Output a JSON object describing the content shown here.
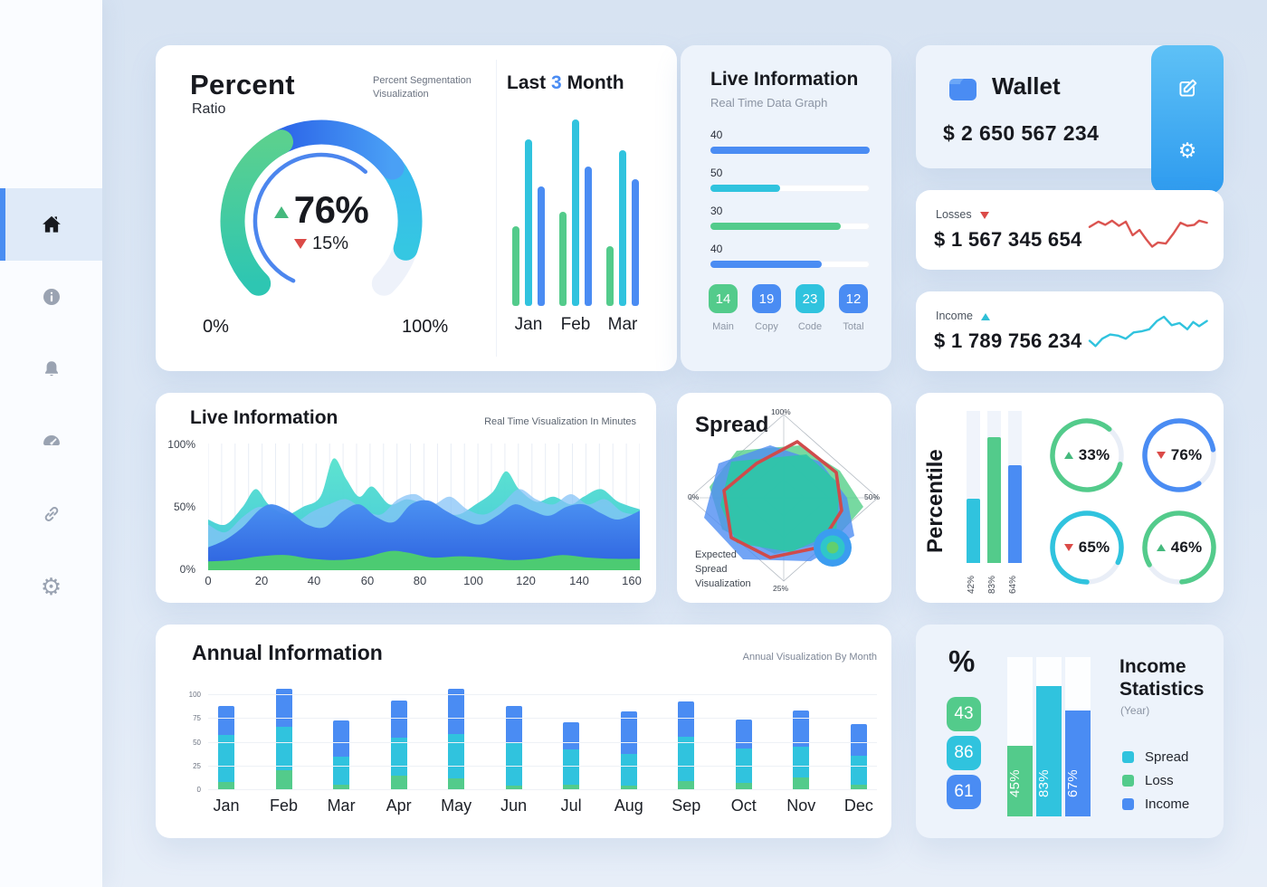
{
  "colors": {
    "green": "#53cb8b",
    "teal": "#30c3de",
    "blue": "#4a8cf3",
    "dark_blue": "#2f6ce8",
    "red": "#db5450",
    "track": "#eef2fa"
  },
  "sidebar": {
    "items": [
      {
        "id": "home",
        "icon": "home-icon",
        "active": true
      },
      {
        "id": "info",
        "icon": "info-icon",
        "active": false
      },
      {
        "id": "notifications",
        "icon": "bell-icon",
        "active": false
      },
      {
        "id": "dashboard",
        "icon": "speedometer-icon",
        "active": false
      },
      {
        "id": "links",
        "icon": "link-icon",
        "active": false
      },
      {
        "id": "settings",
        "icon": "gear-icon",
        "active": false
      }
    ]
  },
  "percent_card": {
    "title": "Percent",
    "subtitle": "Ratio",
    "caption": "Percent Segmentation Visualization",
    "value": "76%",
    "delta": "15%",
    "min_label": "0%",
    "max_label": "100%"
  },
  "last3month_card": {
    "title_parts": [
      "Last",
      "3",
      "Month"
    ]
  },
  "live_top_card": {
    "title": "Live Information",
    "subtitle": "Real Time Data Graph"
  },
  "wallet_card": {
    "title": "Wallet",
    "amount": "$ 2 650 567 234"
  },
  "losses_card": {
    "label": "Losses",
    "amount": "$ 1 567 345 654",
    "trend": "down"
  },
  "income_card": {
    "label": "Income",
    "amount": "$ 1 789 756 234",
    "trend": "up"
  },
  "live_area_card": {
    "title": "Live Information",
    "caption": "Real Time Visualization In Minutes"
  },
  "spread_card": {
    "title": "Spread",
    "caption_lines": [
      "Expected",
      "Spread",
      "Visualization"
    ],
    "axis_top": "100%",
    "axis_right": "50%",
    "axis_bottom": "25%",
    "axis_left": "0%"
  },
  "percentile_card": {
    "title": "Percentile"
  },
  "annual_card": {
    "title": "Annual Information",
    "caption": "Annual Visualization By Month"
  },
  "income_stats_card": {
    "heading": "%",
    "title_lines": [
      "Income",
      "Statistics"
    ],
    "subtitle": "(Year)"
  },
  "chart_data": [
    {
      "id": "percent-gauge",
      "type": "donut",
      "value": 76,
      "delta": -15,
      "min": 0,
      "max": 100,
      "segments": [
        {
          "color": "cyan",
          "from": 395,
          "to": 468
        },
        {
          "color": "blue",
          "from": 330,
          "to": 413
        },
        {
          "color": "green",
          "from": 225,
          "to": 333
        }
      ],
      "track": {
        "from": 225,
        "to": 495
      },
      "inner_arc": {
        "from": 205,
        "to": 402
      }
    },
    {
      "id": "last-3-month",
      "type": "bar",
      "categories": [
        "Jan",
        "Feb",
        "Mar"
      ],
      "ylim": [
        0,
        105
      ],
      "series": [
        {
          "name": "green",
          "values": [
            44,
            52,
            33
          ]
        },
        {
          "name": "teal",
          "values": [
            92,
            103,
            86
          ]
        },
        {
          "name": "blue",
          "values": [
            66,
            77,
            70
          ]
        }
      ]
    },
    {
      "id": "live-progress",
      "type": "bar",
      "orientation": "horizontal",
      "values": [
        {
          "label": "40",
          "pct": 100,
          "color": "blue"
        },
        {
          "label": "50",
          "pct": 44,
          "color": "teal"
        },
        {
          "label": "30",
          "pct": 82,
          "color": "green"
        },
        {
          "label": "40",
          "pct": 70,
          "color": "blue"
        }
      ]
    },
    {
      "id": "live-badges",
      "type": "table",
      "rows": [
        {
          "value": "14",
          "label": "Main",
          "color": "green"
        },
        {
          "value": "19",
          "label": "Copy",
          "color": "blue"
        },
        {
          "value": "23",
          "label": "Code",
          "color": "teal"
        },
        {
          "value": "12",
          "label": "Total",
          "color": "blue"
        }
      ]
    },
    {
      "id": "losses-sparkline",
      "type": "line",
      "color": "red",
      "points": [
        [
          0,
          18
        ],
        [
          9,
          13
        ],
        [
          16,
          16
        ],
        [
          23,
          12
        ],
        [
          30,
          17
        ],
        [
          37,
          13
        ],
        [
          44,
          26
        ],
        [
          51,
          21
        ],
        [
          58,
          30
        ],
        [
          64,
          37
        ],
        [
          70,
          33
        ],
        [
          78,
          34
        ],
        [
          86,
          24
        ],
        [
          93,
          14
        ],
        [
          100,
          17
        ],
        [
          107,
          16
        ],
        [
          112,
          12
        ],
        [
          120,
          14
        ]
      ]
    },
    {
      "id": "income-sparkline",
      "type": "line",
      "color": "teal",
      "points": [
        [
          0,
          30
        ],
        [
          6,
          35
        ],
        [
          13,
          28
        ],
        [
          21,
          24
        ],
        [
          29,
          25
        ],
        [
          37,
          28
        ],
        [
          45,
          22
        ],
        [
          53,
          21
        ],
        [
          61,
          19
        ],
        [
          69,
          11
        ],
        [
          76,
          7
        ],
        [
          84,
          15
        ],
        [
          92,
          13
        ],
        [
          100,
          19
        ],
        [
          106,
          12
        ],
        [
          112,
          16
        ],
        [
          120,
          11
        ]
      ]
    },
    {
      "id": "live-area",
      "type": "area",
      "xlim": [
        0,
        163
      ],
      "x_ticks": [
        0,
        20,
        40,
        60,
        80,
        100,
        120,
        140,
        160
      ],
      "y_ticks": [
        "0%",
        "50%",
        "100%"
      ],
      "grid": true,
      "layers": [
        {
          "name": "teal",
          "points": [
            [
              0,
              40
            ],
            [
              4,
              36
            ],
            [
              8,
              50
            ],
            [
              11,
              64
            ],
            [
              14,
              52
            ],
            [
              18,
              44
            ],
            [
              22,
              50
            ],
            [
              26,
              58
            ],
            [
              29,
              88
            ],
            [
              32,
              72
            ],
            [
              35,
              58
            ],
            [
              38,
              66
            ],
            [
              42,
              52
            ],
            [
              46,
              56
            ],
            [
              50,
              52
            ],
            [
              54,
              46
            ],
            [
              58,
              44
            ],
            [
              62,
              52
            ],
            [
              66,
              62
            ],
            [
              69,
              78
            ],
            [
              72,
              64
            ],
            [
              76,
              54
            ],
            [
              80,
              58
            ],
            [
              84,
              52
            ],
            [
              87,
              58
            ],
            [
              91,
              64
            ],
            [
              95,
              54
            ],
            [
              100,
              48
            ]
          ]
        },
        {
          "name": "lightblue",
          "points": [
            [
              0,
              36
            ],
            [
              4,
              30
            ],
            [
              8,
              42
            ],
            [
              12,
              50
            ],
            [
              16,
              44
            ],
            [
              20,
              38
            ],
            [
              24,
              46
            ],
            [
              28,
              52
            ],
            [
              32,
              56
            ],
            [
              36,
              48
            ],
            [
              40,
              44
            ],
            [
              44,
              56
            ],
            [
              48,
              60
            ],
            [
              52,
              52
            ],
            [
              56,
              58
            ],
            [
              60,
              48
            ],
            [
              64,
              44
            ],
            [
              68,
              52
            ],
            [
              72,
              64
            ],
            [
              76,
              56
            ],
            [
              80,
              52
            ],
            [
              84,
              60
            ],
            [
              88,
              52
            ],
            [
              92,
              56
            ],
            [
              96,
              46
            ],
            [
              100,
              44
            ]
          ]
        },
        {
          "name": "blue",
          "points": [
            [
              0,
              18
            ],
            [
              4,
              24
            ],
            [
              8,
              34
            ],
            [
              12,
              48
            ],
            [
              15,
              52
            ],
            [
              19,
              46
            ],
            [
              23,
              36
            ],
            [
              27,
              34
            ],
            [
              31,
              46
            ],
            [
              35,
              52
            ],
            [
              39,
              42
            ],
            [
              43,
              38
            ],
            [
              47,
              52
            ],
            [
              51,
              55
            ],
            [
              55,
              47
            ],
            [
              59,
              40
            ],
            [
              63,
              36
            ],
            [
              67,
              43
            ],
            [
              71,
              52
            ],
            [
              75,
              47
            ],
            [
              79,
              43
            ],
            [
              83,
              50
            ],
            [
              87,
              52
            ],
            [
              91,
              45
            ],
            [
              95,
              40
            ],
            [
              100,
              47
            ]
          ]
        },
        {
          "name": "green",
          "points": [
            [
              0,
              7
            ],
            [
              6,
              8
            ],
            [
              12,
              11
            ],
            [
              18,
              12
            ],
            [
              24,
              9
            ],
            [
              30,
              8
            ],
            [
              36,
              10
            ],
            [
              42,
              15
            ],
            [
              46,
              14
            ],
            [
              52,
              10
            ],
            [
              58,
              11
            ],
            [
              64,
              10
            ],
            [
              70,
              8
            ],
            [
              76,
              9
            ],
            [
              82,
              12
            ],
            [
              88,
              10
            ],
            [
              94,
              9
            ],
            [
              100,
              9
            ]
          ]
        }
      ]
    },
    {
      "id": "spread-radar",
      "type": "radar",
      "axis_labels": [
        "100%",
        "50%",
        "25%",
        "0%"
      ],
      "polygons": [
        {
          "name": "green-area",
          "color": "#55d08a",
          "opacity": 0.8,
          "points": [
            [
              -52,
              -52
            ],
            [
              18,
              -58
            ],
            [
              62,
              -30
            ],
            [
              88,
              10
            ],
            [
              55,
              48
            ],
            [
              -10,
              62
            ],
            [
              -68,
              35
            ],
            [
              -82,
              -12
            ]
          ]
        },
        {
          "name": "blue-area",
          "color": "#4f8df2",
          "opacity": 0.8,
          "points": [
            [
              -72,
              -38
            ],
            [
              -15,
              -58
            ],
            [
              40,
              -40
            ],
            [
              70,
              0
            ],
            [
              78,
              42
            ],
            [
              30,
              70
            ],
            [
              -45,
              68
            ],
            [
              -88,
              22
            ]
          ]
        },
        {
          "name": "teal-area",
          "color": "#2ec7a6",
          "opacity": 0.92,
          "points": [
            [
              -58,
              -40
            ],
            [
              25,
              -48
            ],
            [
              62,
              -15
            ],
            [
              58,
              38
            ],
            [
              8,
              60
            ],
            [
              -52,
              50
            ],
            [
              -70,
              8
            ]
          ]
        },
        {
          "name": "red-outline",
          "color": "#cf4b4b",
          "stroke": true,
          "points": [
            [
              15,
              -62
            ],
            [
              58,
              -28
            ],
            [
              64,
              14
            ],
            [
              38,
              55
            ],
            [
              -15,
              66
            ],
            [
              -58,
              44
            ],
            [
              -66,
              -8
            ],
            [
              -30,
              -38
            ]
          ]
        }
      ]
    },
    {
      "id": "percentile-bars",
      "type": "bar",
      "values": [
        {
          "label": "42%",
          "pct": 42,
          "color": "teal"
        },
        {
          "label": "83%",
          "pct": 83,
          "color": "green"
        },
        {
          "label": "64%",
          "pct": 64,
          "color": "blue"
        }
      ]
    },
    {
      "id": "percentile-rings",
      "type": "donut",
      "values": [
        {
          "value": "33%",
          "dir": "up",
          "color": "green"
        },
        {
          "value": "76%",
          "dir": "down",
          "color": "blue"
        },
        {
          "value": "65%",
          "dir": "down",
          "color": "teal"
        },
        {
          "value": "46%",
          "dir": "up",
          "color": "green"
        }
      ]
    },
    {
      "id": "annual",
      "type": "bar",
      "stacked": true,
      "yticks": [
        0,
        25,
        50,
        75,
        100
      ],
      "categories": [
        "Jan",
        "Feb",
        "Mar",
        "Apr",
        "May",
        "Jun",
        "Jul",
        "Aug",
        "Sep",
        "Oct",
        "Nov",
        "Dec"
      ],
      "series": [
        {
          "name": "Loss",
          "color": "green",
          "values": [
            8,
            20,
            5,
            14,
            11,
            4,
            5,
            4,
            9,
            7,
            12,
            5
          ]
        },
        {
          "name": "Spread",
          "color": "teal",
          "values": [
            49,
            46,
            29,
            40,
            47,
            46,
            37,
            33,
            46,
            36,
            33,
            30
          ]
        },
        {
          "name": "Income",
          "color": "blue",
          "values": [
            31,
            40,
            38,
            39,
            48,
            38,
            28,
            45,
            37,
            30,
            38,
            34
          ]
        }
      ]
    },
    {
      "id": "income-stats",
      "type": "bar",
      "badges": [
        {
          "value": "43",
          "color": "green"
        },
        {
          "value": "86",
          "color": "teal"
        },
        {
          "value": "61",
          "color": "blue"
        }
      ],
      "values": [
        {
          "label": "45%",
          "pct": 45,
          "color": "green"
        },
        {
          "label": "83%",
          "pct": 83,
          "color": "teal"
        },
        {
          "label": "67%",
          "pct": 67,
          "color": "blue"
        }
      ],
      "legend": [
        {
          "label": "Spread",
          "color": "teal"
        },
        {
          "label": "Loss",
          "color": "green"
        },
        {
          "label": "Income",
          "color": "blue"
        }
      ]
    }
  ]
}
